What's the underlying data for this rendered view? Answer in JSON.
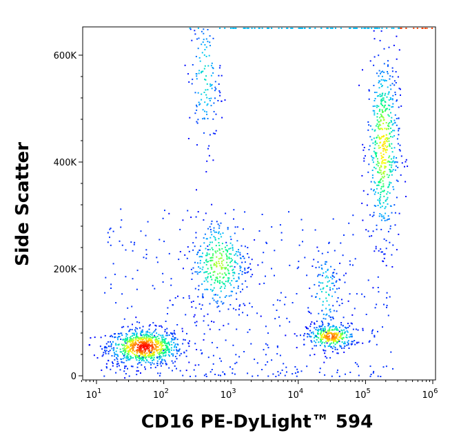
{
  "chart_data": {
    "type": "scatter",
    "plot_style": "density dot plot (flow cytometry)",
    "xlabel": "CD16 PE-DyLight™ 594",
    "ylabel": "Side Scatter",
    "x_scale": "log",
    "y_scale": "linear",
    "xlim": [
      5,
      120000
    ],
    "ylim": [
      -5000,
      650000
    ],
    "x_ticks": [
      {
        "value": 10,
        "base": "10",
        "exp": "1"
      },
      {
        "value": 100,
        "base": "10",
        "exp": "2"
      },
      {
        "value": 1000,
        "base": "10",
        "exp": "3"
      },
      {
        "value": 10000,
        "base": "10",
        "exp": "4"
      },
      {
        "value": 100000,
        "base": "10",
        "exp": "5"
      },
      {
        "value": 1000000,
        "base": "10",
        "exp": "6"
      }
    ],
    "y_ticks": [
      {
        "value": 0,
        "label": "0"
      },
      {
        "value": 200000,
        "label": "200K"
      },
      {
        "value": 400000,
        "label": "400K"
      },
      {
        "value": 600000,
        "label": "600K"
      }
    ],
    "color_scale": [
      "#0000ff",
      "#00bfff",
      "#00ff7f",
      "#ffff00",
      "#ff7f00",
      "#ff0000"
    ],
    "populations": [
      {
        "x_center": 50,
        "y_center": 55000,
        "x_spread_decades": 0.28,
        "y_spread": 17000,
        "weight": 0.3,
        "peak_density": "red"
      },
      {
        "x_center": 30000,
        "y_center": 75000,
        "x_spread_decades": 0.18,
        "y_spread": 12000,
        "weight": 0.12,
        "peak_density": "orange"
      },
      {
        "x_center": 180000,
        "y_center": 430000,
        "x_spread_decades": 0.12,
        "y_spread": 90000,
        "weight": 0.2,
        "peak_density": "yellow"
      },
      {
        "x_center": 650,
        "y_center": 210000,
        "x_spread_decades": 0.22,
        "y_spread": 45000,
        "weight": 0.14,
        "peak_density": "green"
      },
      {
        "x_center": 400,
        "y_center": 560000,
        "x_spread_decades": 0.12,
        "y_spread": 70000,
        "weight": 0.06,
        "peak_density": "blue"
      },
      {
        "x_center": 25000,
        "y_center": 160000,
        "x_spread_decades": 0.12,
        "y_spread": 45000,
        "weight": 0.04,
        "peak_density": "blue"
      }
    ],
    "grid": false,
    "legend": "none"
  }
}
